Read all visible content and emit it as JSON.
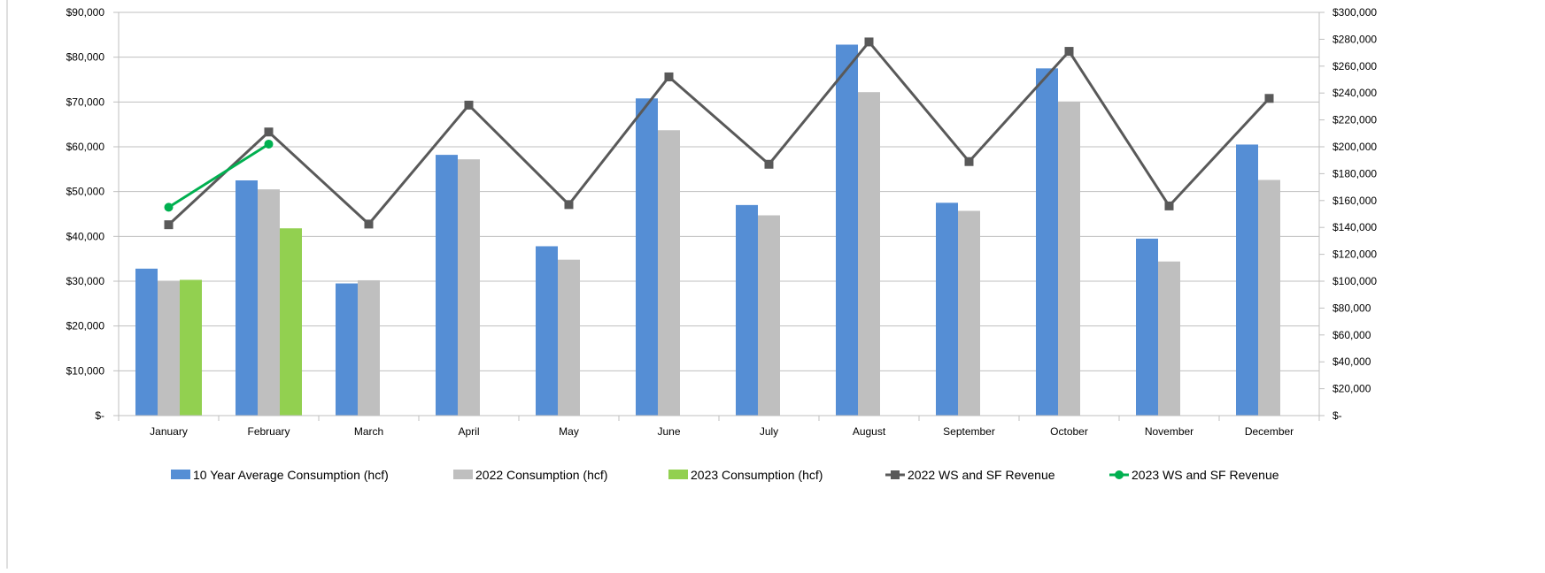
{
  "chart_data": {
    "type": "bar",
    "title": "",
    "categories": [
      "January",
      "February",
      "March",
      "April",
      "May",
      "June",
      "July",
      "August",
      "September",
      "October",
      "November",
      "December"
    ],
    "left_axis": {
      "min": 0,
      "max": 90000,
      "step": 10000,
      "ticks": [
        "$-",
        "$10,000",
        "$20,000",
        "$30,000",
        "$40,000",
        "$50,000",
        "$60,000",
        "$70,000",
        "$80,000",
        "$90,000"
      ]
    },
    "right_axis": {
      "min": 0,
      "max": 300000,
      "step": 20000,
      "ticks": [
        "$-",
        "$20,000",
        "$40,000",
        "$60,000",
        "$80,000",
        "$100,000",
        "$120,000",
        "$140,000",
        "$160,000",
        "$180,000",
        "$200,000",
        "$220,000",
        "$240,000",
        "$260,000",
        "$280,000",
        "$300,000"
      ]
    },
    "grid": true,
    "legend_position": "bottom",
    "bar_series": [
      {
        "name": "10 Year Average Consumption (hcf)",
        "color": "#558ed5",
        "axis": "left",
        "values": [
          32800,
          52500,
          29500,
          58200,
          37800,
          70800,
          47000,
          82800,
          47500,
          77500,
          39500,
          60500
        ]
      },
      {
        "name": "2022 Consumption (hcf)",
        "color": "#bfbfbf",
        "axis": "left",
        "values": [
          30100,
          50500,
          30200,
          57200,
          34800,
          63700,
          44700,
          72200,
          45700,
          70100,
          34400,
          52600
        ]
      },
      {
        "name": "2023 Consumption (hcf)",
        "color": "#92d050",
        "axis": "left",
        "values": [
          30300,
          41800,
          null,
          null,
          null,
          null,
          null,
          null,
          null,
          null,
          null,
          null
        ]
      }
    ],
    "line_series": [
      {
        "name": "2022 WS and SF Revenue",
        "color": "#595959",
        "marker": "square",
        "axis": "right",
        "values": [
          142000,
          211000,
          142500,
          231000,
          157000,
          252000,
          187000,
          278000,
          189000,
          271000,
          156000,
          236000
        ]
      },
      {
        "name": "2023 WS and SF Revenue",
        "color": "#00b050",
        "marker": "circle",
        "axis": "right",
        "values": [
          155000,
          202000,
          null,
          null,
          null,
          null,
          null,
          null,
          null,
          null,
          null,
          null
        ]
      }
    ]
  }
}
